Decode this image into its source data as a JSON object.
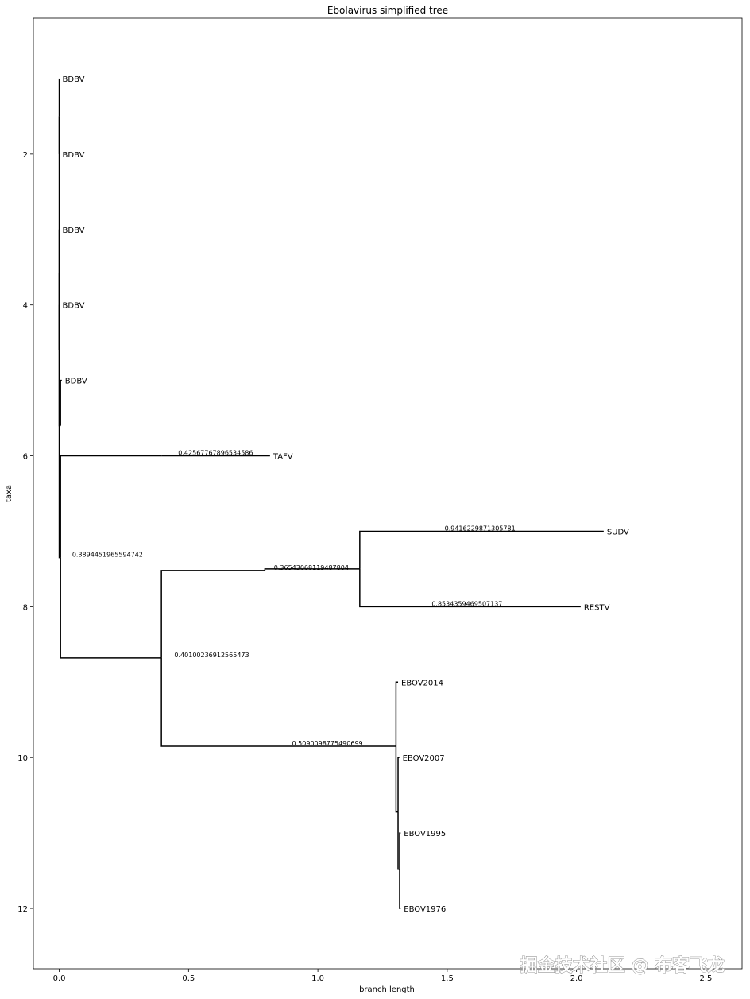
{
  "chart_data": {
    "type": "tree",
    "title": "Ebolavirus simplified tree",
    "xlabel": "branch length",
    "ylabel": "taxa",
    "xlim": [
      -0.1,
      2.64
    ],
    "ylim": [
      12.8,
      0.2
    ],
    "xticks": [
      0.0,
      0.5,
      1.0,
      1.5,
      2.0,
      2.5
    ],
    "xtick_labels": [
      "0.0",
      "0.5",
      "1.0",
      "1.5",
      "2.0",
      "2.5"
    ],
    "yticks": [
      2,
      4,
      6,
      8,
      10,
      12
    ],
    "ytick_labels": [
      "2",
      "4",
      "6",
      "8",
      "10",
      "12"
    ],
    "leaves": [
      {
        "name": "BDBV",
        "x": 0.0,
        "y": 1
      },
      {
        "name": "BDBV",
        "x": 0.0,
        "y": 2
      },
      {
        "name": "BDBV",
        "x": 0.0,
        "y": 3
      },
      {
        "name": "BDBV",
        "x": 0.0,
        "y": 4
      },
      {
        "name": "BDBV",
        "x": 0.01,
        "y": 5
      },
      {
        "name": "TAFV",
        "x": 0.815,
        "y": 6
      },
      {
        "name": "SUDV",
        "x": 2.105,
        "y": 7
      },
      {
        "name": "RESTV",
        "x": 2.016,
        "y": 8
      },
      {
        "name": "EBOV2014",
        "x": 1.31,
        "y": 9
      },
      {
        "name": "EBOV2007",
        "x": 1.315,
        "y": 10
      },
      {
        "name": "EBOV1995",
        "x": 1.32,
        "y": 11
      },
      {
        "name": "EBOV1976",
        "x": 1.32,
        "y": 12
      }
    ],
    "nodes": [
      {
        "id": "root",
        "x": 0.0,
        "y": 3.58
      },
      {
        "id": "bdbv_in1",
        "x": 0.0,
        "y": 1.5
      },
      {
        "id": "bdbv_in2",
        "x": 0.0,
        "y": 4.6
      },
      {
        "id": "bdbv_in3",
        "x": 0.005,
        "y": 5.6
      },
      {
        "id": "n1",
        "x": 0.005,
        "y": 7.35
      },
      {
        "id": "n2",
        "x": 0.395,
        "y": 6.0
      },
      {
        "id": "n3",
        "x": 0.395,
        "y": 8.68
      },
      {
        "id": "n4",
        "x": 0.795,
        "y": 7.52
      },
      {
        "id": "n5",
        "x": 0.795,
        "y": 9.85
      },
      {
        "id": "n6",
        "x": 1.162,
        "y": 7.5
      },
      {
        "id": "n7",
        "x": 1.302,
        "y": 9.85
      },
      {
        "id": "n8",
        "x": 1.31,
        "y": 10.72
      },
      {
        "id": "n9",
        "x": 1.316,
        "y": 11.48
      }
    ],
    "edges": [
      [
        "root",
        "bdbv_in1"
      ],
      [
        "root",
        "bdbv_in2"
      ],
      [
        "root",
        "n1"
      ],
      [
        "bdbv_in1",
        "leaf0"
      ],
      [
        "bdbv_in1",
        "leaf1"
      ],
      [
        "bdbv_in2",
        "leaf2"
      ],
      [
        "bdbv_in2",
        "leaf3"
      ],
      [
        "bdbv_in2",
        "bdbv_in3"
      ],
      [
        "bdbv_in3",
        "leaf4"
      ],
      [
        "n1",
        "n2"
      ],
      [
        "n1",
        "n3"
      ],
      [
        "n2",
        "leaf5"
      ],
      [
        "n3",
        "n4"
      ],
      [
        "n3",
        "n5"
      ],
      [
        "n4",
        "n6"
      ],
      [
        "n6",
        "leaf6"
      ],
      [
        "n6",
        "leaf7"
      ],
      [
        "n5",
        "n7"
      ],
      [
        "n7",
        "leaf8"
      ],
      [
        "n7",
        "n8"
      ],
      [
        "n8",
        "leaf9"
      ],
      [
        "n8",
        "n9"
      ],
      [
        "n9",
        "leaf10"
      ],
      [
        "n9",
        "leaf11"
      ]
    ],
    "branch_labels": [
      {
        "text": "0.3894451965594742",
        "x": 0.05,
        "y": 7.35
      },
      {
        "text": "0.4256776789653458​6",
        "x": 0.46,
        "y": 6.0
      },
      {
        "text": "0.40100236912565473",
        "x": 0.445,
        "y": 8.68
      },
      {
        "text": "0.36543068119487804",
        "x": 0.83,
        "y": 7.52
      },
      {
        "text": "0.5090098775490699",
        "x": 0.9,
        "y": 9.85
      },
      {
        "text": "0.9416229871305781",
        "x": 1.49,
        "y": 7.0
      },
      {
        "text": "0.8534359469507137",
        "x": 1.44,
        "y": 8.0
      }
    ]
  },
  "watermark": "掘金技术社区 @ 布客飞龙"
}
